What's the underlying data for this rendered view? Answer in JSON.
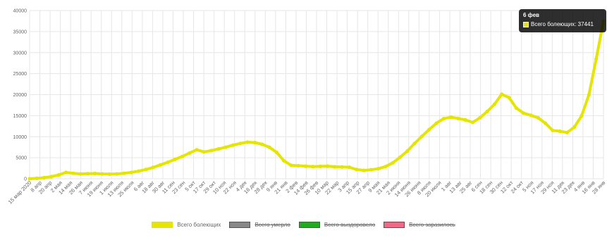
{
  "chart_data": {
    "type": "line",
    "title": "",
    "xlabel": "",
    "ylabel": "",
    "ylim": [
      0,
      40000
    ],
    "y_ticks": [
      0,
      5000,
      10000,
      15000,
      20000,
      25000,
      30000,
      35000,
      40000
    ],
    "grid": true,
    "legend_position": "bottom",
    "x_labels": [
      "15 мар 2020",
      "8 апр",
      "20 апр",
      "2 мая",
      "14 мая",
      "26 мая",
      "7 июня",
      "19 июня",
      "1 июля",
      "13 июля",
      "25 июля",
      "6 авг",
      "18 авг",
      "30 авг",
      "11 сен",
      "23 сен",
      "5 окт",
      "17 окт",
      "29 окт",
      "10 ноя",
      "22 ноя",
      "4 дек",
      "16 дек",
      "28 дек",
      "9 янв",
      "21 янв",
      "2 фев",
      "14 фев",
      "26 фев",
      "10 мар",
      "22 мар",
      "3 апр",
      "15 апр",
      "27 апр",
      "9 мая",
      "21 мая",
      "2 июня",
      "14 июня",
      "26 июня",
      "8 июля",
      "20 июля",
      "1 авг",
      "13 авг",
      "25 авг",
      "6 сен",
      "18 сен",
      "30 сен",
      "12 окт",
      "24 окт",
      "5 ноя",
      "17 ноя",
      "29 ноя",
      "11 дек",
      "23 дек",
      "4 янв",
      "16 янв",
      "28 янв"
    ],
    "series": [
      {
        "name": "Всего болеющих",
        "color": "#e5e500",
        "hidden": false,
        "values": [
          0,
          100,
          250,
          500,
          900,
          1500,
          1300,
          1150,
          1200,
          1250,
          1150,
          1100,
          1150,
          1300,
          1500,
          1800,
          2200,
          2700,
          3300,
          3900,
          4600,
          5300,
          6100,
          6900,
          6400,
          6700,
          7100,
          7500,
          8000,
          8400,
          8700,
          8600,
          8200,
          7500,
          6300,
          4300,
          3200,
          3100,
          3000,
          2900,
          2950,
          3000,
          2850,
          2800,
          2750,
          2200,
          2000,
          2150,
          2400,
          2900,
          3800,
          5100,
          6600,
          8400,
          10100,
          11700,
          13200,
          14300,
          14650,
          14350,
          14000,
          13400,
          14500,
          16000,
          17700,
          20100,
          19300,
          16800,
          15600,
          15100,
          14500,
          13200,
          11500,
          11300,
          11000,
          12300,
          15000,
          20000,
          28500,
          37441
        ],
        "highlight": {
          "label": "6 фев",
          "value": 37441
        }
      },
      {
        "name": "Всего умерло",
        "color": "#888888",
        "hidden": true
      },
      {
        "name": "Всего выздоровело",
        "color": "#22aa22",
        "hidden": true
      },
      {
        "name": "Всего заразилось",
        "color": "#ee6b87",
        "hidden": true
      }
    ]
  },
  "tooltip": {
    "title": "6 фев",
    "label": "Всего болеющих: 37441",
    "swatch_color": "#e5e500"
  }
}
